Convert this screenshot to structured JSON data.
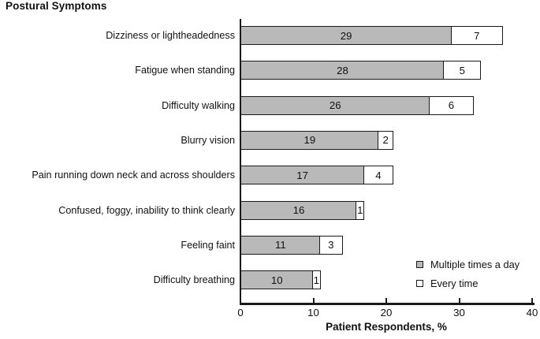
{
  "title": "Postural Symptoms",
  "chart_data": {
    "type": "bar",
    "orientation": "horizontal",
    "stacked": true,
    "categories": [
      "Dizziness or lightheadedness",
      "Fatigue when standing",
      "Difficulty walking",
      "Blurry vision",
      "Pain running down neck and across shoulders",
      "Confused, foggy, inability to think clearly",
      "Feeling faint",
      "Difficulty breathing"
    ],
    "series": [
      {
        "name": "Multiple times a day",
        "color": "#b9b9b9",
        "values": [
          29,
          28,
          26,
          19,
          17,
          16,
          11,
          10
        ]
      },
      {
        "name": "Every time",
        "color": "#ffffff",
        "values": [
          7,
          5,
          6,
          2,
          4,
          1,
          3,
          1
        ]
      }
    ],
    "xlabel": "Patient Respondents, %",
    "xlim": [
      0,
      40
    ],
    "xticks": [
      0,
      10,
      20,
      30,
      40
    ],
    "grid": false,
    "legend_position": "inside-bottom-right",
    "bar_value_labels": "inside-center",
    "colors": {
      "bar_border": "#1a1a1a",
      "axis": "#1a1a1a",
      "text": "#111111"
    }
  }
}
